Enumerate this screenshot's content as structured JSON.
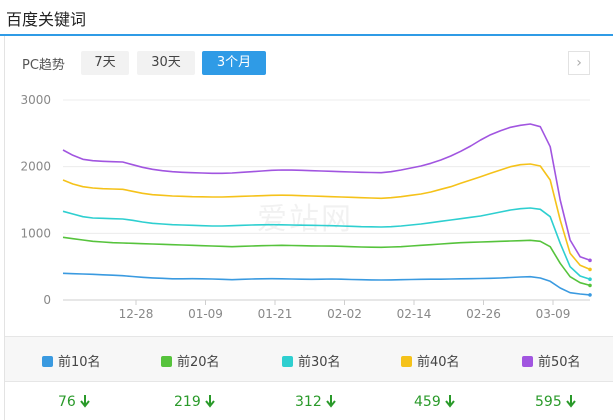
{
  "page": {
    "title": "百度关键词"
  },
  "toolbar": {
    "label": "PC趋势",
    "ranges": [
      "7天",
      "30天",
      "3个月"
    ],
    "active_range": "3个月",
    "next_icon": "chevron-right-icon"
  },
  "watermark": "爱站网",
  "colors": {
    "accent": "#2f9be6",
    "positive_down": "#2a9a2a"
  },
  "chart_data": {
    "type": "line",
    "title": "",
    "xlabel": "",
    "ylabel": "",
    "ylim": [
      0,
      3000
    ],
    "y_ticks": [
      0,
      1000,
      2000,
      3000
    ],
    "x_tick_labels": [
      "12-28",
      "01-09",
      "01-21",
      "02-02",
      "02-14",
      "02-26",
      "03-09"
    ],
    "grid": "horizontal",
    "legend_position": "bottom",
    "series": [
      {
        "name": "前10名",
        "color": "#3a9ae0",
        "values": [
          400,
          395,
          390,
          385,
          378,
          372,
          365,
          352,
          340,
          332,
          325,
          318,
          318,
          320,
          318,
          315,
          310,
          305,
          310,
          315,
          318,
          320,
          318,
          315,
          312,
          310,
          312,
          315,
          312,
          308,
          305,
          302,
          300,
          302,
          305,
          308,
          310,
          312,
          312,
          315,
          318,
          320,
          322,
          325,
          330,
          338,
          345,
          350,
          330,
          280,
          180,
          110,
          90,
          76
        ]
      },
      {
        "name": "前20名",
        "color": "#56c33c",
        "values": [
          940,
          920,
          900,
          880,
          870,
          860,
          855,
          850,
          845,
          840,
          835,
          830,
          825,
          820,
          815,
          810,
          805,
          800,
          805,
          810,
          815,
          818,
          820,
          818,
          815,
          812,
          810,
          808,
          805,
          800,
          795,
          792,
          790,
          795,
          800,
          810,
          820,
          830,
          840,
          850,
          860,
          865,
          870,
          875,
          880,
          885,
          890,
          895,
          880,
          800,
          550,
          350,
          260,
          219
        ]
      },
      {
        "name": "前30名",
        "color": "#2ecfd0",
        "values": [
          1330,
          1290,
          1250,
          1230,
          1225,
          1220,
          1215,
          1195,
          1170,
          1150,
          1140,
          1130,
          1125,
          1120,
          1115,
          1110,
          1110,
          1115,
          1120,
          1125,
          1128,
          1130,
          1128,
          1125,
          1122,
          1120,
          1118,
          1115,
          1110,
          1105,
          1100,
          1098,
          1095,
          1100,
          1110,
          1125,
          1140,
          1160,
          1180,
          1200,
          1220,
          1240,
          1260,
          1290,
          1320,
          1350,
          1370,
          1380,
          1360,
          1250,
          850,
          500,
          360,
          312
        ]
      },
      {
        "name": "前40名",
        "color": "#f5c21a",
        "values": [
          1800,
          1740,
          1700,
          1680,
          1670,
          1665,
          1660,
          1630,
          1600,
          1580,
          1570,
          1560,
          1555,
          1550,
          1548,
          1545,
          1545,
          1550,
          1555,
          1560,
          1565,
          1570,
          1572,
          1570,
          1565,
          1560,
          1555,
          1550,
          1545,
          1540,
          1535,
          1530,
          1525,
          1535,
          1550,
          1570,
          1590,
          1620,
          1660,
          1700,
          1750,
          1800,
          1850,
          1900,
          1950,
          2000,
          2030,
          2040,
          2010,
          1800,
          1200,
          700,
          520,
          459
        ]
      },
      {
        "name": "前50名",
        "color": "#a155e0",
        "values": [
          2250,
          2170,
          2110,
          2090,
          2080,
          2075,
          2070,
          2030,
          1990,
          1960,
          1940,
          1925,
          1915,
          1910,
          1905,
          1900,
          1900,
          1905,
          1915,
          1925,
          1935,
          1945,
          1950,
          1948,
          1945,
          1940,
          1935,
          1930,
          1925,
          1920,
          1915,
          1912,
          1910,
          1925,
          1950,
          1980,
          2010,
          2050,
          2100,
          2160,
          2230,
          2310,
          2400,
          2480,
          2540,
          2590,
          2620,
          2640,
          2600,
          2300,
          1500,
          900,
          650,
          595
        ]
      }
    ]
  },
  "summary": [
    {
      "label": "前10名",
      "value": "76",
      "trend": "down"
    },
    {
      "label": "前20名",
      "value": "219",
      "trend": "down"
    },
    {
      "label": "前30名",
      "value": "312",
      "trend": "down"
    },
    {
      "label": "前40名",
      "value": "459",
      "trend": "down"
    },
    {
      "label": "前50名",
      "value": "595",
      "trend": "down"
    }
  ]
}
